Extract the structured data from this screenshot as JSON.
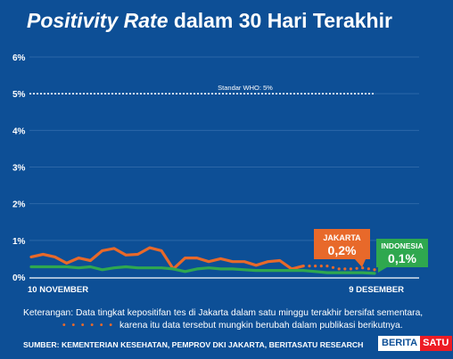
{
  "title": {
    "italic": "Positivity Rate",
    "rest": " dalam 30 Hari Terakhir"
  },
  "chart_data": {
    "type": "line",
    "title": "Positivity Rate dalam 30 Hari Terakhir",
    "y_ticks": [
      "6%",
      "5%",
      "4%",
      "3%",
      "2%",
      "1%",
      "0%"
    ],
    "ylim": [
      0,
      6
    ],
    "x_labels": {
      "start": "10 NOVEMBER",
      "end": "9 DESEMBER"
    },
    "reference_line": {
      "value": 5,
      "label": "Standar WHO: 5%"
    },
    "grid": true,
    "series": [
      {
        "name": "JAKARTA",
        "color": "#e8692a",
        "values": [
          0.55,
          0.62,
          0.55,
          0.38,
          0.52,
          0.45,
          0.72,
          0.78,
          0.6,
          0.62,
          0.8,
          0.72,
          0.22,
          0.52,
          0.52,
          0.42,
          0.5,
          0.42,
          0.42,
          0.32,
          0.42,
          0.45,
          0.22,
          0.3,
          0.3,
          0.3,
          0.22,
          0.22,
          0.25,
          0.2
        ],
        "provisional_from_index": 23,
        "callout": {
          "label": "JAKARTA",
          "value": "0,2%"
        }
      },
      {
        "name": "INDONESIA",
        "color": "#2fa84f",
        "values": [
          0.28,
          0.28,
          0.28,
          0.28,
          0.25,
          0.28,
          0.2,
          0.25,
          0.28,
          0.25,
          0.25,
          0.25,
          0.22,
          0.15,
          0.22,
          0.25,
          0.22,
          0.22,
          0.2,
          0.18,
          0.18,
          0.18,
          0.18,
          0.18,
          0.15,
          0.12,
          0.12,
          0.12,
          0.12,
          0.1
        ],
        "callout": {
          "label": "INDONESIA",
          "value": "0,1%"
        }
      }
    ]
  },
  "note": {
    "line1": "Keterangan: Data tingkat kepositifan tes di Jakarta dalam satu minggu terakhir bersifat sementara,",
    "dots": "• • • • • •",
    "line2": "karena itu data tersebut mungkin berubah dalam publikasi berikutnya."
  },
  "source": "SUMBER: KEMENTERIAN KESEHATAN, PEMPROV DKI JAKARTA, BERITASATU RESEARCH",
  "logo": {
    "part1": "BERITA",
    "part2": "SATU"
  },
  "colors": {
    "background": "#0d4f96",
    "jakarta": "#e8692a",
    "indonesia": "#2fa84f"
  }
}
